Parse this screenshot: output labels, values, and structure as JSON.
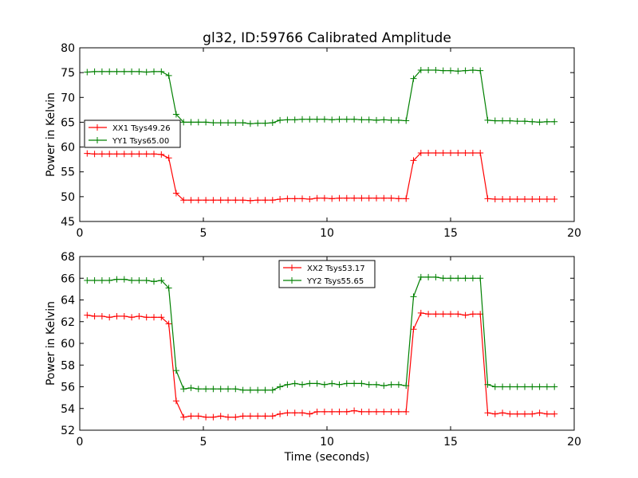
{
  "figure": {
    "title": "gl32, ID:59766 Calibrated Amplitude",
    "xlabel": "Time (seconds)"
  },
  "colors": {
    "xx": "#ff0000",
    "yy": "#008000",
    "axes": "#000000",
    "background": "#ffffff"
  },
  "chart_data": [
    {
      "type": "line",
      "title": "gl32, ID:59766 Calibrated Amplitude",
      "xlabel": "",
      "ylabel": "Power in Kelvin",
      "xlim": [
        0,
        20
      ],
      "ylim": [
        45,
        80
      ],
      "x_ticks": [
        "0",
        "5",
        "10",
        "15",
        "20"
      ],
      "y_ticks": [
        "45",
        "50",
        "55",
        "60",
        "65",
        "70",
        "75",
        "80"
      ],
      "legend": {
        "placement": "center-left",
        "entries": [
          "XX1 Tsys49.26",
          "YY1 Tsys65.00"
        ]
      },
      "marker": "+",
      "x": [
        0.3,
        0.6,
        0.9,
        1.2,
        1.5,
        1.8,
        2.1,
        2.4,
        2.7,
        3.0,
        3.3,
        3.6,
        3.9,
        4.2,
        4.5,
        4.8,
        5.1,
        5.4,
        5.7,
        6.0,
        6.3,
        6.6,
        6.9,
        7.2,
        7.5,
        7.8,
        8.1,
        8.4,
        8.7,
        9.0,
        9.3,
        9.6,
        9.9,
        10.2,
        10.5,
        10.8,
        11.1,
        11.4,
        11.7,
        12.0,
        12.3,
        12.6,
        12.9,
        13.2,
        13.5,
        13.8,
        14.1,
        14.4,
        14.7,
        15.0,
        15.3,
        15.6,
        15.9,
        16.2,
        16.5,
        16.8,
        17.1,
        17.4,
        17.7,
        18.0,
        18.3,
        18.6,
        18.9,
        19.2
      ],
      "series": [
        {
          "name": "XX1 Tsys49.26",
          "color": "#ff0000",
          "values": [
            58.7,
            58.6,
            58.6,
            58.6,
            58.6,
            58.6,
            58.6,
            58.6,
            58.6,
            58.6,
            58.5,
            57.8,
            50.7,
            49.3,
            49.3,
            49.3,
            49.3,
            49.3,
            49.3,
            49.3,
            49.3,
            49.3,
            49.2,
            49.3,
            49.3,
            49.3,
            49.5,
            49.6,
            49.6,
            49.6,
            49.5,
            49.7,
            49.7,
            49.6,
            49.7,
            49.7,
            49.7,
            49.7,
            49.7,
            49.7,
            49.7,
            49.7,
            49.6,
            49.6,
            57.3,
            58.8,
            58.8,
            58.8,
            58.8,
            58.8,
            58.8,
            58.8,
            58.8,
            58.8,
            49.6,
            49.5,
            49.5,
            49.5,
            49.5,
            49.5,
            49.5,
            49.5,
            49.5,
            49.5
          ]
        },
        {
          "name": "YY1 Tsys65.00",
          "color": "#008000",
          "values": [
            75.1,
            75.2,
            75.2,
            75.2,
            75.2,
            75.2,
            75.2,
            75.2,
            75.1,
            75.2,
            75.2,
            74.4,
            66.6,
            65.0,
            65.0,
            65.0,
            65.0,
            64.9,
            64.9,
            64.9,
            64.9,
            64.9,
            64.7,
            64.8,
            64.8,
            64.9,
            65.4,
            65.5,
            65.5,
            65.6,
            65.6,
            65.6,
            65.6,
            65.5,
            65.6,
            65.6,
            65.6,
            65.5,
            65.5,
            65.4,
            65.5,
            65.4,
            65.4,
            65.3,
            73.8,
            75.5,
            75.5,
            75.5,
            75.4,
            75.4,
            75.3,
            75.4,
            75.5,
            75.4,
            65.4,
            65.3,
            65.3,
            65.3,
            65.2,
            65.2,
            65.1,
            65.0,
            65.1,
            65.1
          ]
        }
      ]
    },
    {
      "type": "line",
      "title": "",
      "xlabel": "Time (seconds)",
      "ylabel": "Power in Kelvin",
      "xlim": [
        0,
        20
      ],
      "ylim": [
        52,
        68
      ],
      "x_ticks": [
        "0",
        "5",
        "10",
        "15",
        "20"
      ],
      "y_ticks": [
        "52",
        "54",
        "56",
        "58",
        "60",
        "62",
        "64",
        "66",
        "68"
      ],
      "legend": {
        "placement": "upper-center",
        "entries": [
          "XX2 Tsys53.17",
          "YY2 Tsys55.65"
        ]
      },
      "marker": "+",
      "x": [
        0.3,
        0.6,
        0.9,
        1.2,
        1.5,
        1.8,
        2.1,
        2.4,
        2.7,
        3.0,
        3.3,
        3.6,
        3.9,
        4.2,
        4.5,
        4.8,
        5.1,
        5.4,
        5.7,
        6.0,
        6.3,
        6.6,
        6.9,
        7.2,
        7.5,
        7.8,
        8.1,
        8.4,
        8.7,
        9.0,
        9.3,
        9.6,
        9.9,
        10.2,
        10.5,
        10.8,
        11.1,
        11.4,
        11.7,
        12.0,
        12.3,
        12.6,
        12.9,
        13.2,
        13.5,
        13.8,
        14.1,
        14.4,
        14.7,
        15.0,
        15.3,
        15.6,
        15.9,
        16.2,
        16.5,
        16.8,
        17.1,
        17.4,
        17.7,
        18.0,
        18.3,
        18.6,
        18.9,
        19.2
      ],
      "series": [
        {
          "name": "XX2 Tsys53.17",
          "color": "#ff0000",
          "values": [
            62.6,
            62.5,
            62.5,
            62.4,
            62.5,
            62.5,
            62.4,
            62.5,
            62.4,
            62.4,
            62.4,
            61.8,
            54.7,
            53.2,
            53.3,
            53.3,
            53.2,
            53.2,
            53.3,
            53.2,
            53.2,
            53.3,
            53.3,
            53.3,
            53.3,
            53.3,
            53.5,
            53.6,
            53.6,
            53.6,
            53.5,
            53.7,
            53.7,
            53.7,
            53.7,
            53.7,
            53.8,
            53.7,
            53.7,
            53.7,
            53.7,
            53.7,
            53.7,
            53.7,
            61.3,
            62.8,
            62.7,
            62.7,
            62.7,
            62.7,
            62.7,
            62.6,
            62.7,
            62.7,
            53.6,
            53.5,
            53.6,
            53.5,
            53.5,
            53.5,
            53.5,
            53.6,
            53.5,
            53.5
          ]
        },
        {
          "name": "YY2 Tsys55.65",
          "color": "#008000",
          "values": [
            65.8,
            65.8,
            65.8,
            65.8,
            65.9,
            65.9,
            65.8,
            65.8,
            65.8,
            65.7,
            65.8,
            65.1,
            57.5,
            55.8,
            55.9,
            55.8,
            55.8,
            55.8,
            55.8,
            55.8,
            55.8,
            55.7,
            55.7,
            55.7,
            55.7,
            55.7,
            56.0,
            56.2,
            56.3,
            56.2,
            56.3,
            56.3,
            56.2,
            56.3,
            56.2,
            56.3,
            56.3,
            56.3,
            56.2,
            56.2,
            56.1,
            56.2,
            56.2,
            56.1,
            64.3,
            66.1,
            66.1,
            66.1,
            66.0,
            66.0,
            66.0,
            66.0,
            66.0,
            66.0,
            56.2,
            56.0,
            56.0,
            56.0,
            56.0,
            56.0,
            56.0,
            56.0,
            56.0,
            56.0
          ]
        }
      ]
    }
  ]
}
